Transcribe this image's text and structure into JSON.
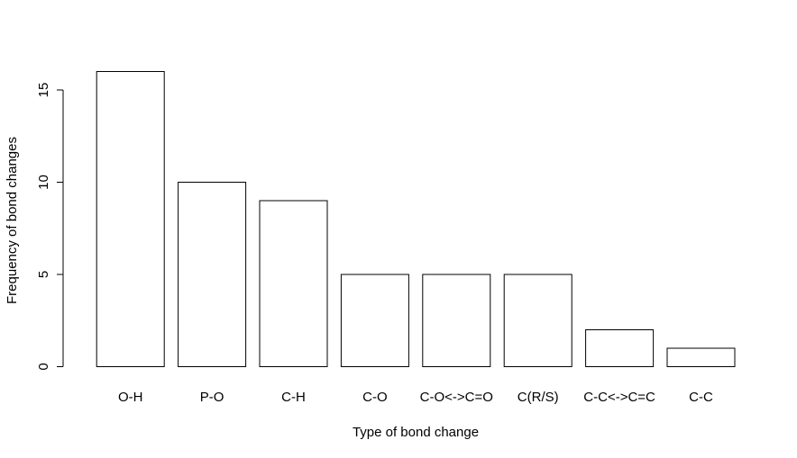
{
  "chart_data": {
    "type": "bar",
    "title": "",
    "xlabel": "Type of bond change",
    "ylabel": "Frequency of bond changes",
    "ylim": [
      0,
      16
    ],
    "yticks": [
      0,
      5,
      10,
      15
    ],
    "grid": false,
    "legend": "none",
    "bar_fill": "#ffffff",
    "bar_stroke": "#000000",
    "categories": [
      "O-H",
      "P-O",
      "C-H",
      "C-O",
      "C-O<->C=O",
      "C(R/S)",
      "C-C<->C=C",
      "C-C"
    ],
    "values": [
      16,
      10,
      9,
      5,
      5,
      5,
      2,
      1
    ]
  }
}
